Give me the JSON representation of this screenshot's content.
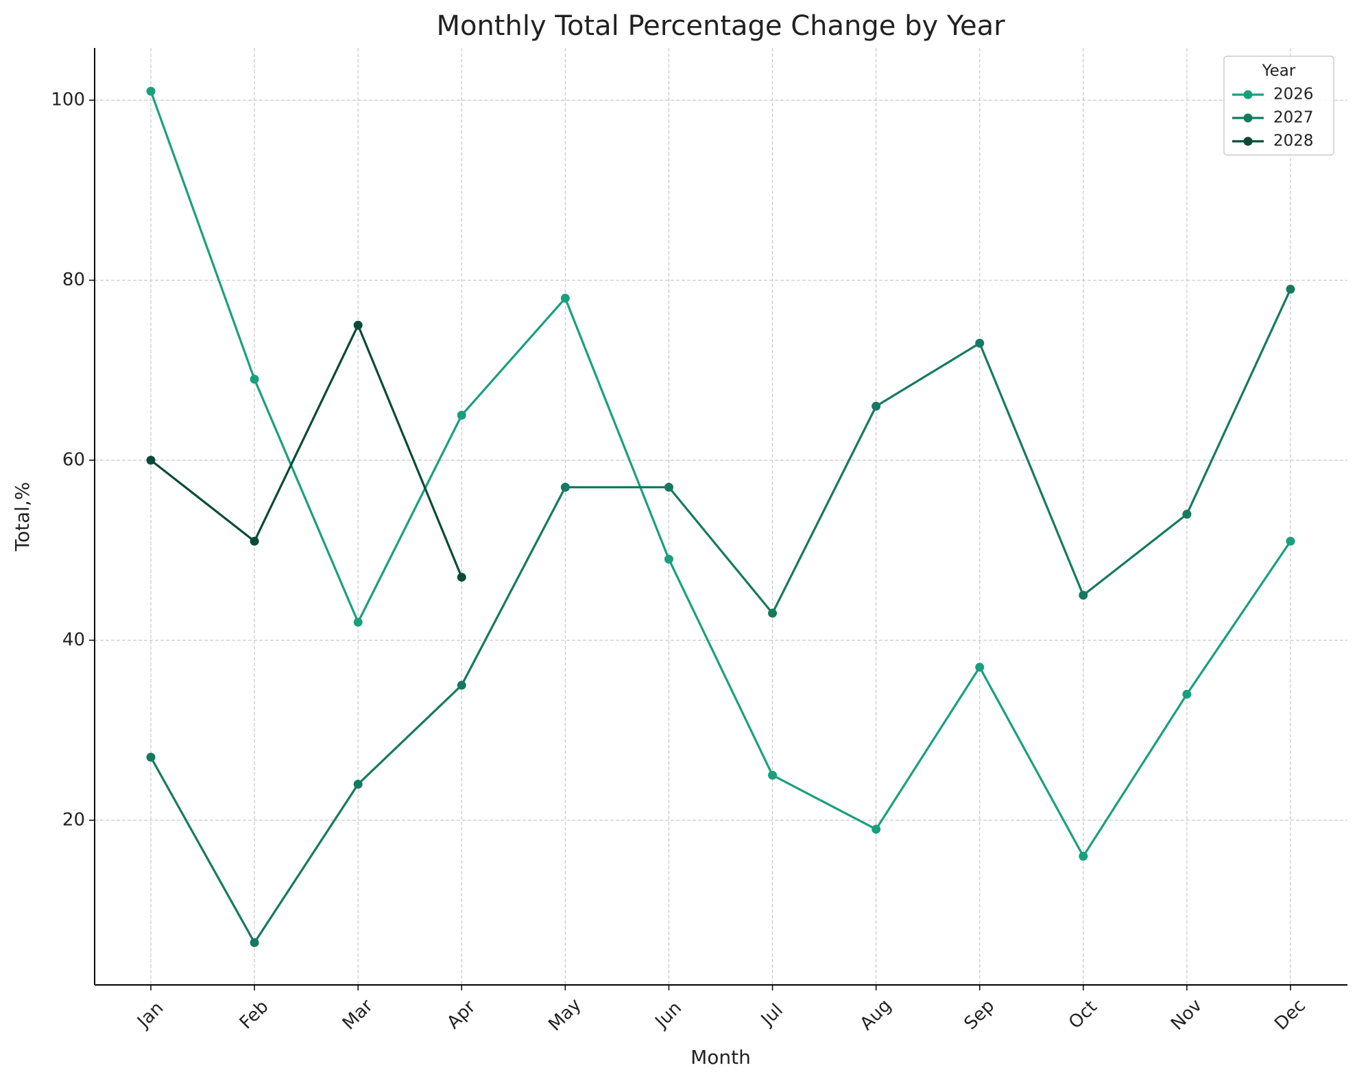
{
  "chart_data": {
    "type": "line",
    "title": "Monthly Total Percentage Change by Year",
    "x_label": "Month",
    "y_label": "Total,%",
    "categories": [
      "Jan",
      "Feb",
      "Mar",
      "Apr",
      "May",
      "Jun",
      "Jul",
      "Aug",
      "Sep",
      "Oct",
      "Nov",
      "Dec"
    ],
    "series": [
      {
        "name": "2026",
        "color": "#18a07e",
        "values": [
          101,
          69,
          42,
          65,
          78,
          49,
          25,
          19,
          37,
          16,
          34,
          51
        ]
      },
      {
        "name": "2027",
        "color": "#157a60",
        "values": [
          27,
          6.4,
          24,
          35,
          57,
          57,
          43,
          66,
          73,
          45,
          54,
          79
        ]
      },
      {
        "name": "2028",
        "color": "#0b4a38",
        "values": [
          60,
          51,
          75,
          47,
          null,
          null,
          null,
          null,
          null,
          null,
          null,
          null
        ]
      }
    ],
    "legend_title": "Year",
    "legend_position": "upper right",
    "ylim": [
      1.7,
      105.8
    ],
    "yticks": [
      20,
      40,
      60,
      80,
      100
    ],
    "grid": true
  }
}
